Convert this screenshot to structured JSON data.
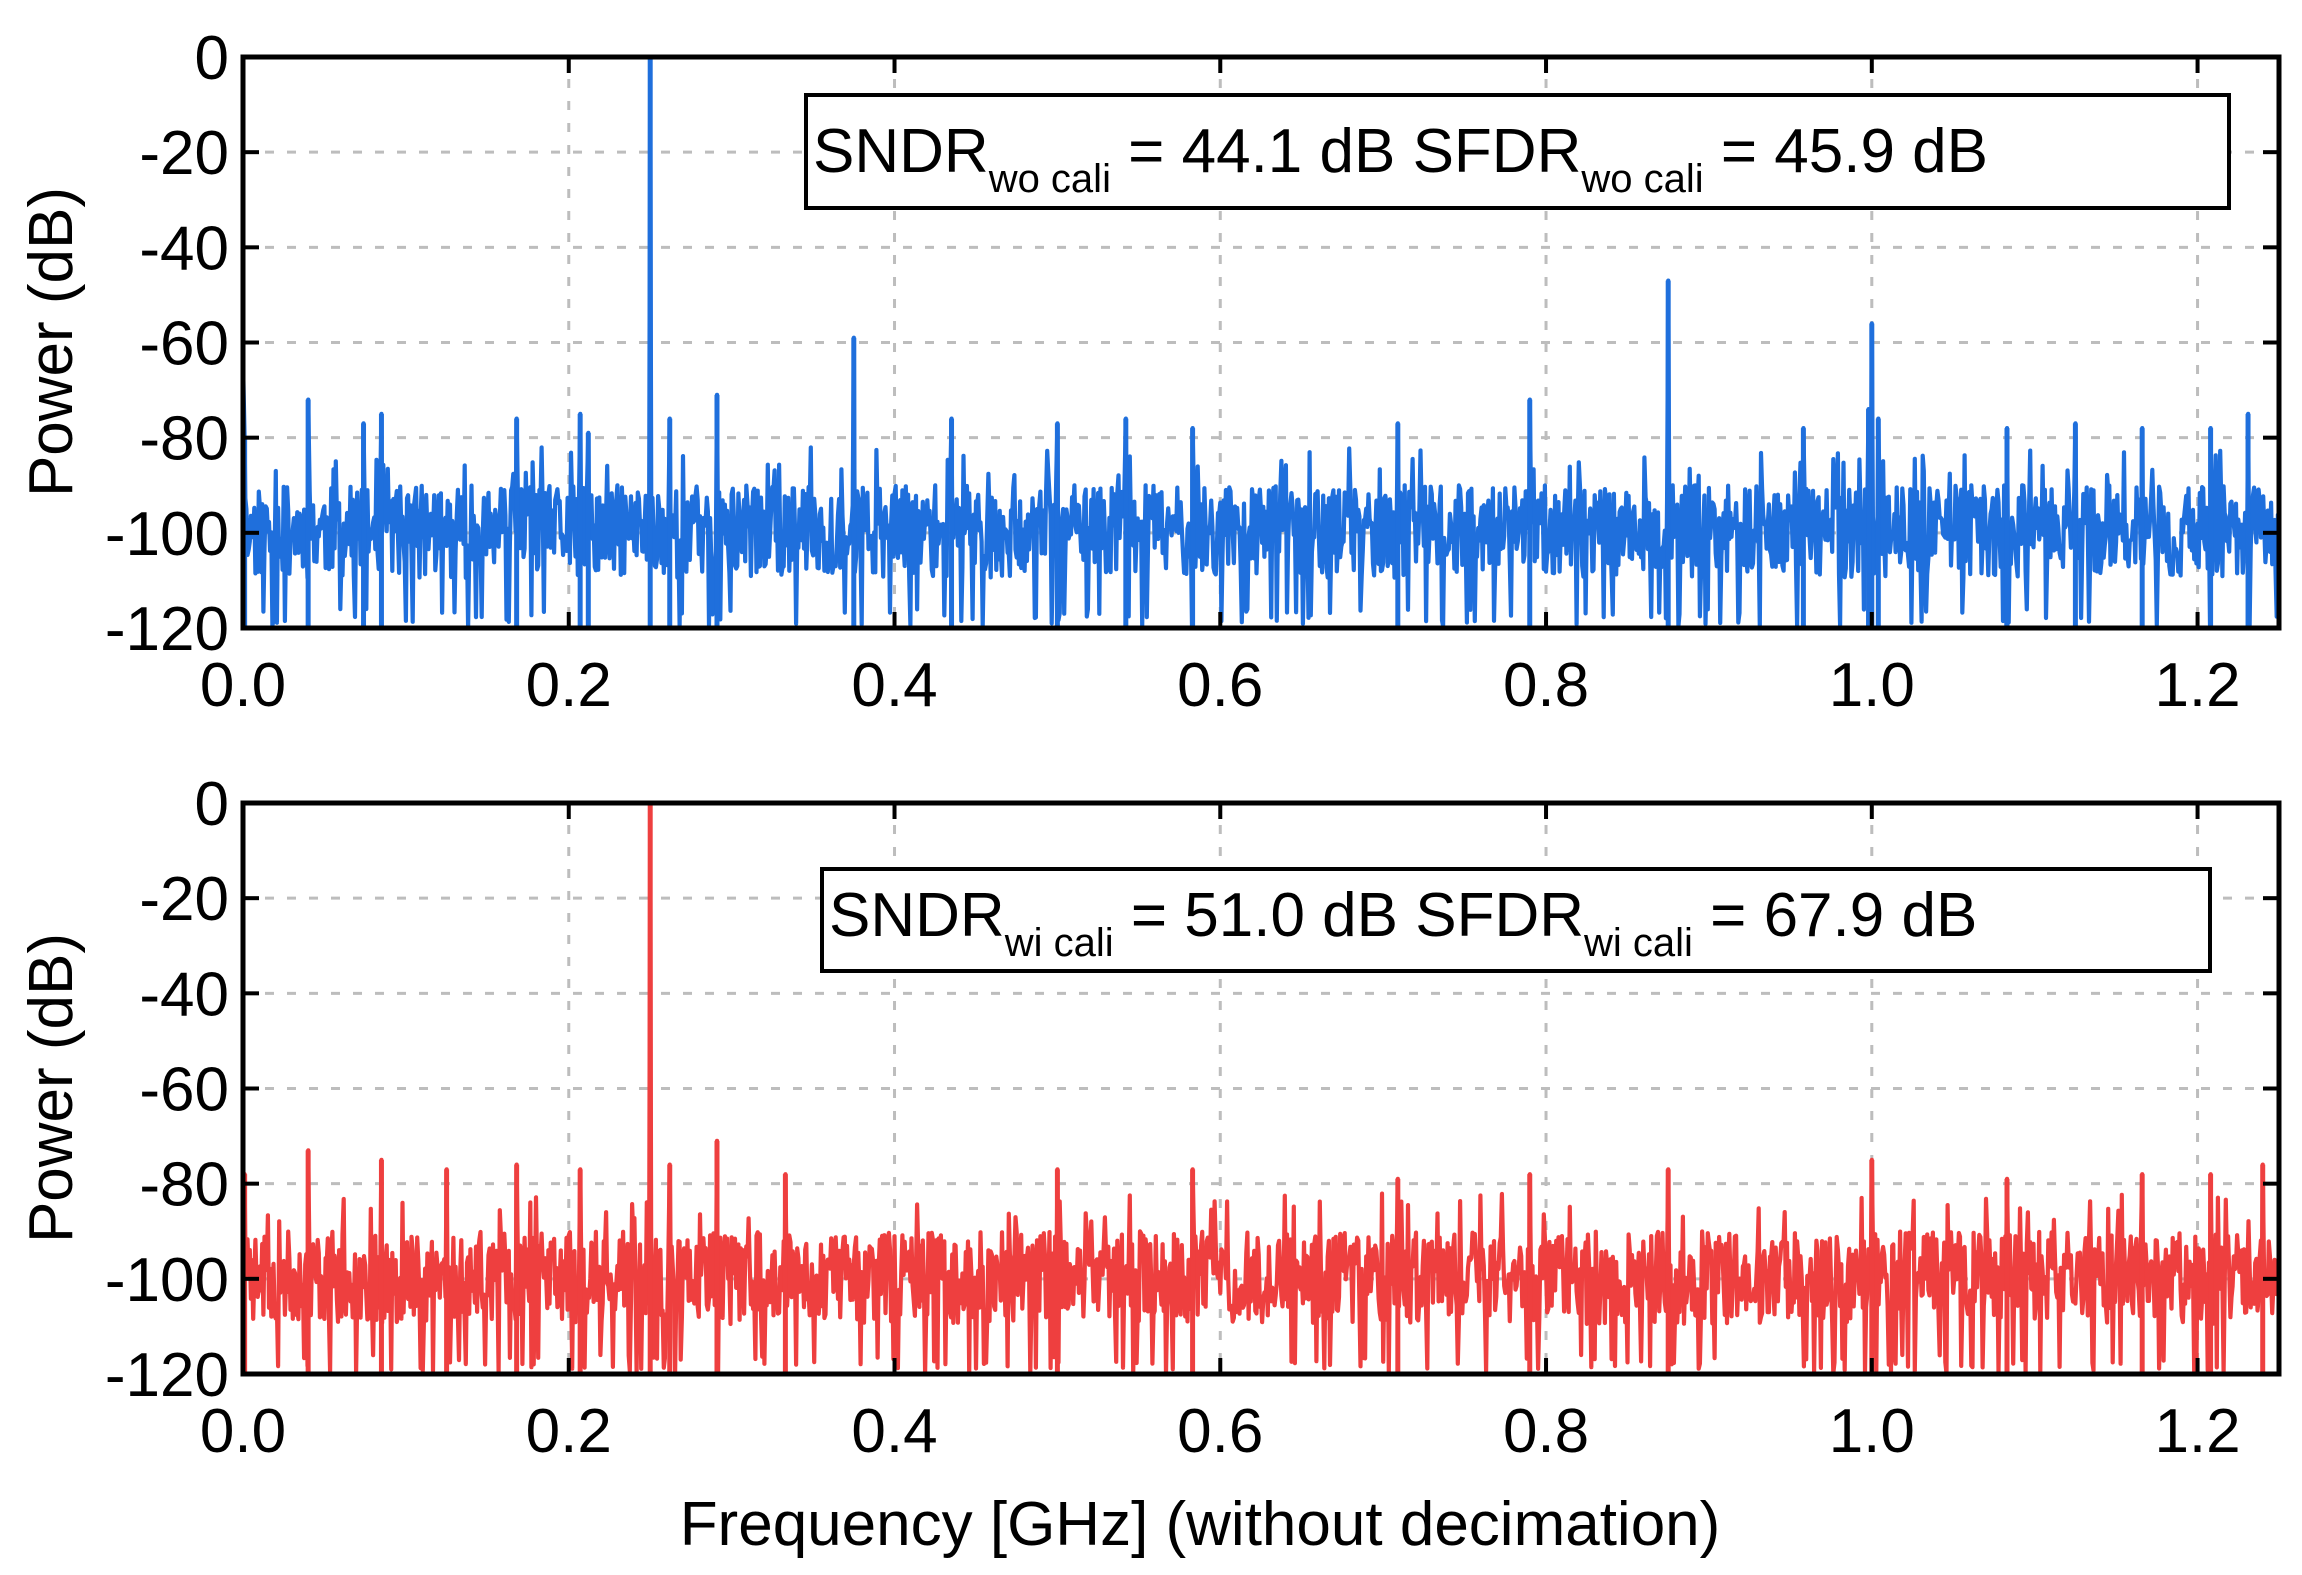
{
  "chart_data": [
    {
      "type": "line",
      "panel": "top",
      "title": "",
      "xlabel": "",
      "ylabel": "Power (dB)",
      "xlim": [
        0,
        1.25
      ],
      "ylim": [
        -120,
        0
      ],
      "xticks": [
        "0.0",
        "0.2",
        "0.4",
        "0.6",
        "0.8",
        "1.0",
        "1.2"
      ],
      "yticks": [
        "0",
        "-20",
        "-40",
        "-60",
        "-80",
        "-100",
        "-120"
      ],
      "grid": true,
      "color": "#1f6fdc",
      "annotation": {
        "sndr_label": "SNDR",
        "sndr_sub": "wo cali",
        "sndr_value": " = 44.1 dB ",
        "sfdr_label": "SFDR",
        "sfdr_sub": "wo cali",
        "sfdr_value": " = 45.9 dB"
      },
      "noise_floor_db": [
        -120,
        -90
      ],
      "seed": 11,
      "spurs": [
        {
          "x": 0.0,
          "y": -64
        },
        {
          "x": 0.001,
          "y": -80
        },
        {
          "x": 0.04,
          "y": -72
        },
        {
          "x": 0.074,
          "y": -77
        },
        {
          "x": 0.085,
          "y": -75
        },
        {
          "x": 0.168,
          "y": -76
        },
        {
          "x": 0.207,
          "y": -75
        },
        {
          "x": 0.212,
          "y": -79
        },
        {
          "x": 0.25,
          "y": 0
        },
        {
          "x": 0.262,
          "y": -76
        },
        {
          "x": 0.291,
          "y": -71
        },
        {
          "x": 0.375,
          "y": -59
        },
        {
          "x": 0.435,
          "y": -76
        },
        {
          "x": 0.5,
          "y": -77
        },
        {
          "x": 0.542,
          "y": -76
        },
        {
          "x": 0.583,
          "y": -78
        },
        {
          "x": 0.709,
          "y": -77
        },
        {
          "x": 0.79,
          "y": -72
        },
        {
          "x": 0.875,
          "y": -47
        },
        {
          "x": 0.958,
          "y": -78
        },
        {
          "x": 1.0,
          "y": -56
        },
        {
          "x": 0.998,
          "y": -74
        },
        {
          "x": 1.004,
          "y": -76
        },
        {
          "x": 1.083,
          "y": -78
        },
        {
          "x": 1.125,
          "y": -77
        },
        {
          "x": 1.166,
          "y": -78
        },
        {
          "x": 1.208,
          "y": -78
        },
        {
          "x": 1.231,
          "y": -75
        }
      ]
    },
    {
      "type": "line",
      "panel": "bottom",
      "title": "",
      "xlabel": "Frequency [GHz] (without decimation)",
      "ylabel": "Power (dB)",
      "xlim": [
        0,
        1.25
      ],
      "ylim": [
        -120,
        0
      ],
      "xticks": [
        "0.0",
        "0.2",
        "0.4",
        "0.6",
        "0.8",
        "1.0",
        "1.2"
      ],
      "yticks": [
        "0",
        "-20",
        "-40",
        "-60",
        "-80",
        "-100",
        "-120"
      ],
      "grid": true,
      "color": "#ee3f3f",
      "annotation": {
        "sndr_label": "SNDR",
        "sndr_sub": "wi cali",
        "sndr_value": " = 51.0 dB ",
        "sfdr_label": "SFDR",
        "sfdr_sub": "wi cali",
        "sfdr_value": " = 67.9 dB"
      },
      "noise_floor_db": [
        -120,
        -90
      ],
      "seed": 23,
      "spurs": [
        {
          "x": 0.001,
          "y": -78
        },
        {
          "x": 0.04,
          "y": -73
        },
        {
          "x": 0.085,
          "y": -75
        },
        {
          "x": 0.125,
          "y": -77
        },
        {
          "x": 0.168,
          "y": -76
        },
        {
          "x": 0.207,
          "y": -77
        },
        {
          "x": 0.25,
          "y": 0
        },
        {
          "x": 0.262,
          "y": -76
        },
        {
          "x": 0.291,
          "y": -71
        },
        {
          "x": 0.333,
          "y": -78
        },
        {
          "x": 0.5,
          "y": -77
        },
        {
          "x": 0.583,
          "y": -77
        },
        {
          "x": 0.709,
          "y": -79
        },
        {
          "x": 0.79,
          "y": -78
        },
        {
          "x": 0.875,
          "y": -77
        },
        {
          "x": 1.0,
          "y": -75
        },
        {
          "x": 1.083,
          "y": -79
        },
        {
          "x": 1.166,
          "y": -78
        },
        {
          "x": 1.208,
          "y": -78
        },
        {
          "x": 1.24,
          "y": -76
        }
      ]
    }
  ]
}
